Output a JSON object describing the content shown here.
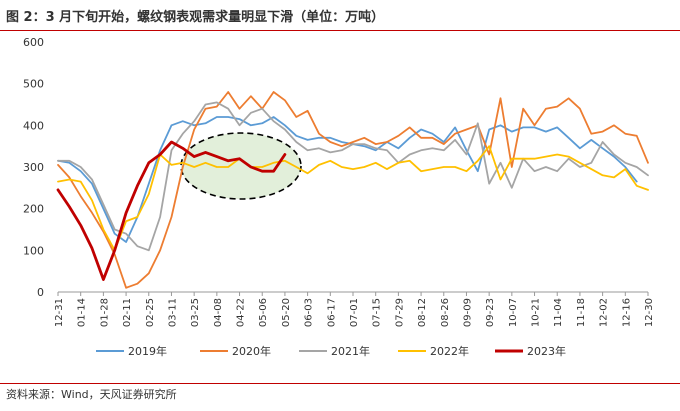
{
  "title": "图 2：3 月下旬开始，螺纹钢表观需求量明显下滑（单位：万吨）",
  "source": "资料来源：Wind，天风证券研究所",
  "colors": {
    "s2019": "#5b9bd5",
    "s2020": "#ed7d31",
    "s2021": "#a5a5a5",
    "s2022": "#ffc000",
    "s2023": "#c00000",
    "ellipse_fill": "#e2efda",
    "frame": "#c00000"
  },
  "chart_data": {
    "type": "line",
    "ylim": [
      0,
      600
    ],
    "yticks": [
      0,
      100,
      200,
      300,
      400,
      500,
      600
    ],
    "x_count": 53,
    "xtick_labels": [
      "12-31",
      "01-14",
      "01-28",
      "02-11",
      "02-25",
      "03-11",
      "03-25",
      "04-08",
      "04-22",
      "05-06",
      "05-20",
      "06-03",
      "06-17",
      "07-01",
      "07-15",
      "07-29",
      "08-12",
      "08-26",
      "09-09",
      "09-23",
      "10-07",
      "10-21",
      "11-04",
      "11-18",
      "12-02",
      "12-16",
      "12-30"
    ],
    "series": [
      {
        "name": "2019年",
        "color_key": "s2019",
        "values": [
          315,
          310,
          290,
          260,
          200,
          140,
          120,
          180,
          260,
          340,
          400,
          410,
          400,
          405,
          420,
          420,
          415,
          400,
          405,
          420,
          400,
          375,
          365,
          370,
          370,
          360,
          355,
          350,
          340,
          360,
          345,
          370,
          390,
          380,
          360,
          395,
          340,
          290,
          390,
          400,
          385,
          395,
          395,
          385,
          395,
          370,
          345,
          365,
          345,
          325,
          300,
          265
        ]
      },
      {
        "name": "2020年",
        "color_key": "s2020",
        "values": [
          305,
          275,
          230,
          190,
          145,
          90,
          10,
          20,
          45,
          100,
          180,
          300,
          390,
          440,
          445,
          480,
          440,
          470,
          440,
          480,
          460,
          420,
          435,
          380,
          360,
          350,
          360,
          370,
          355,
          360,
          375,
          395,
          370,
          370,
          355,
          380,
          390,
          400,
          330,
          465,
          300,
          440,
          400,
          440,
          445,
          465,
          440,
          380,
          385,
          400,
          380,
          375,
          310
        ]
      },
      {
        "name": "2021年",
        "color_key": "s2021",
        "values": [
          315,
          315,
          300,
          270,
          210,
          150,
          140,
          110,
          100,
          180,
          340,
          380,
          410,
          450,
          455,
          440,
          400,
          430,
          440,
          410,
          390,
          360,
          340,
          345,
          335,
          340,
          355,
          355,
          345,
          340,
          310,
          330,
          340,
          345,
          340,
          365,
          330,
          405,
          260,
          310,
          250,
          320,
          290,
          300,
          290,
          320,
          300,
          310,
          360,
          330,
          310,
          300,
          280
        ]
      },
      {
        "name": "2022年",
        "color_key": "s2022",
        "values": [
          265,
          270,
          265,
          220,
          150,
          100,
          170,
          180,
          235,
          330,
          305,
          310,
          300,
          310,
          300,
          300,
          320,
          300,
          300,
          310,
          315,
          300,
          285,
          305,
          315,
          300,
          295,
          300,
          310,
          295,
          310,
          315,
          290,
          295,
          300,
          300,
          290,
          315,
          350,
          270,
          320,
          320,
          320,
          325,
          330,
          325,
          310,
          295,
          280,
          275,
          295,
          255,
          245
        ]
      },
      {
        "name": "2023年",
        "color_key": "s2023",
        "values": [
          245,
          205,
          160,
          105,
          30,
          100,
          190,
          255,
          310,
          330,
          360,
          345,
          325,
          335,
          325,
          315,
          320,
          300,
          290,
          290,
          330
        ]
      }
    ]
  }
}
